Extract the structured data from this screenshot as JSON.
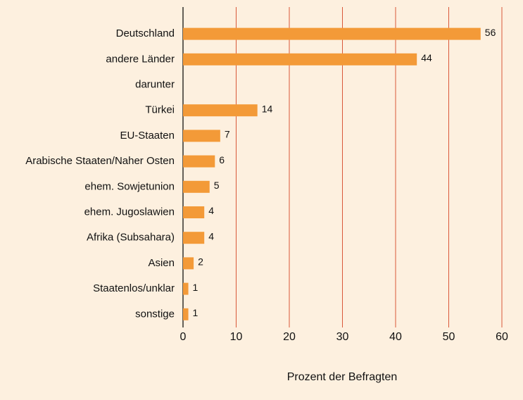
{
  "chart_data": {
    "type": "barh",
    "categories": [
      "Deutschland",
      "andere Länder",
      "darunter",
      "Türkei",
      "EU-Staaten",
      "Arabische Staaten/Naher Osten",
      "ehem. Sowjetunion",
      "ehem. Jugoslawien",
      "Afrika (Subsahara)",
      "Asien",
      "Staatenlos/unklar",
      "sonstige"
    ],
    "values": [
      56,
      44,
      null,
      14,
      7,
      6,
      5,
      4,
      4,
      2,
      1,
      1
    ],
    "color": "#f39a38",
    "xlabel": "Prozent der Befragten",
    "xlim": [
      0,
      60
    ],
    "xticks": [
      0,
      10,
      20,
      30,
      40,
      50,
      60
    ],
    "grid": true,
    "grid_color": "#d9583a"
  }
}
